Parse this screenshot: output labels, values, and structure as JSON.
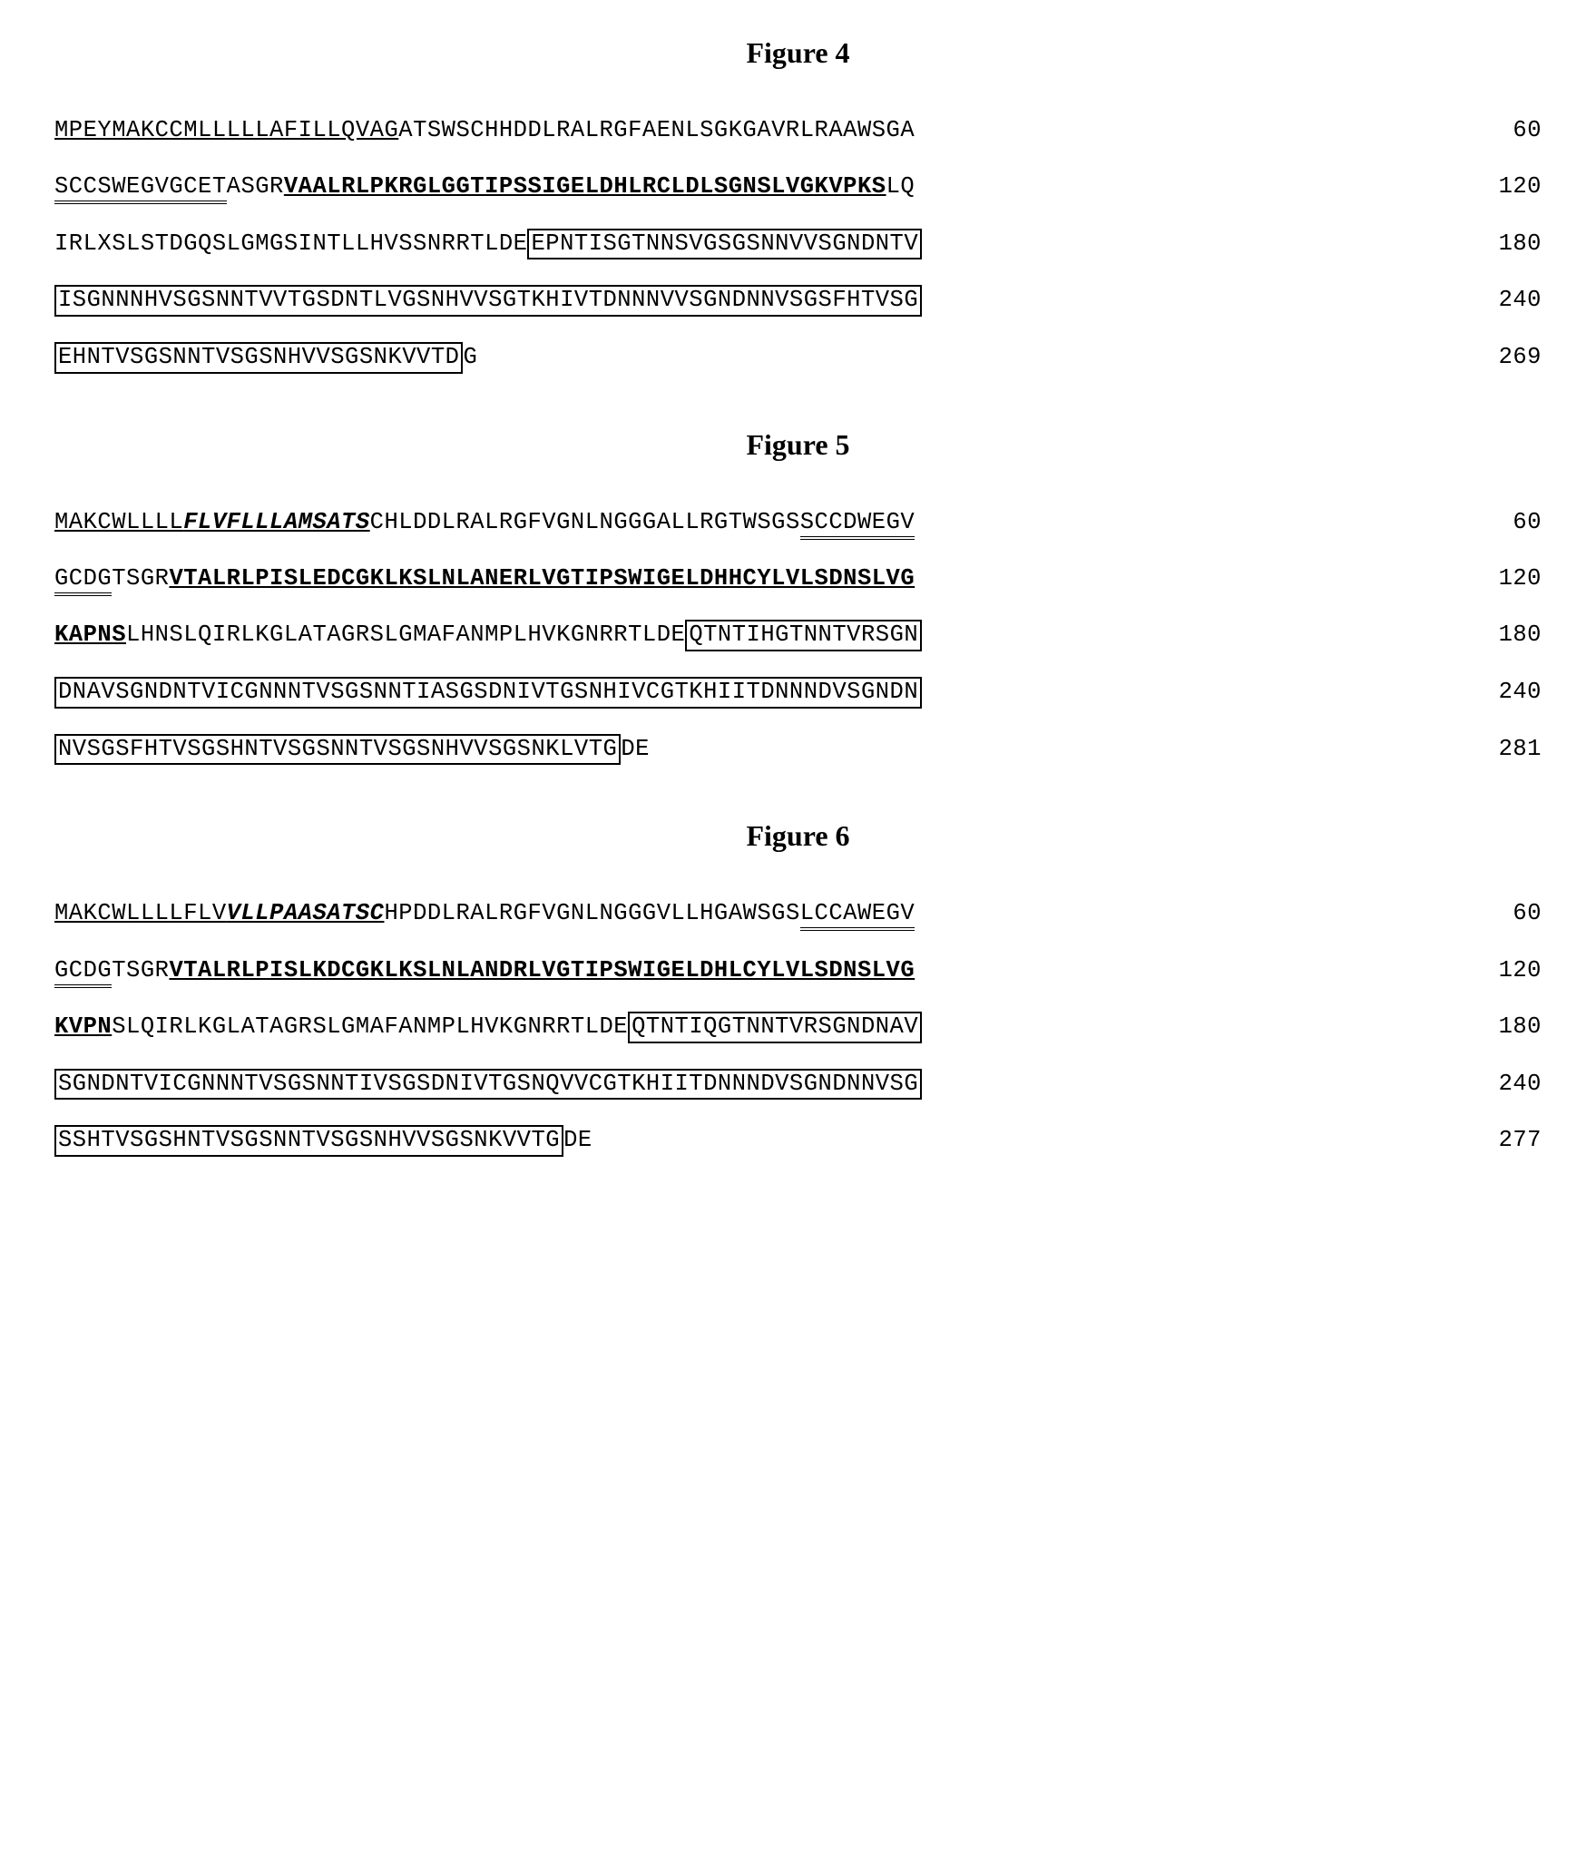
{
  "figures": [
    {
      "title": "Figure 4",
      "lines": [
        {
          "num": "60",
          "segments": [
            {
              "text": "MPEYMAKCCMLLLLLAFILLQVAG",
              "classes": "u"
            },
            {
              "text": "ATSWSCHHDDLRALRGFAENLSGKGAVRLRAAWSGA",
              "classes": ""
            }
          ]
        },
        {
          "num": "120",
          "segments": [
            {
              "text": "SCCSWEGVGCET",
              "classes": "du"
            },
            {
              "text": "ASGR",
              "classes": ""
            },
            {
              "text": "VAALRLPKRGLGGTIPSSIGELDHLRCLDLSGNSLVGKVPKS",
              "classes": "b u"
            },
            {
              "text": "LQ",
              "classes": ""
            }
          ]
        },
        {
          "num": "180",
          "segments": [
            {
              "text": "IRLXSLSTDGQSLGMGSINTLLHVSSNRRTLDE",
              "classes": ""
            },
            {
              "text": "EPNTISGTNNSVGSGSNNVVSGNDNTV",
              "classes": "box"
            }
          ]
        },
        {
          "num": "240",
          "segments": [
            {
              "text": "ISGNNNHVSGSNNTVVTGSDNTLVGSNHVVSGTKHIVTDNNNVVSGNDNNVSGSFHTVSG",
              "classes": "box"
            }
          ]
        },
        {
          "num": "269",
          "segments": [
            {
              "text": "EHNTVSGSNNTVSGSNHVVSGSNKVVTD",
              "classes": "box"
            },
            {
              "text": "G",
              "classes": ""
            }
          ]
        }
      ]
    },
    {
      "title": "Figure 5",
      "lines": [
        {
          "num": "60",
          "segments": [
            {
              "text": "MAKCWLLLL",
              "classes": "u"
            },
            {
              "text": "FLVFLLLAMSATS",
              "classes": "b i u"
            },
            {
              "text": "CHLDDLRALRGFVGNLNGGGALLRGTWSGS",
              "classes": ""
            },
            {
              "text": "SCCDWEGV",
              "classes": "du"
            }
          ]
        },
        {
          "num": "120",
          "segments": [
            {
              "text": "GCDG",
              "classes": "du"
            },
            {
              "text": "TSGR",
              "classes": ""
            },
            {
              "text": "VTALRLPISLEDCGKLKSLNLANERLVGTIPSWIGELDHHCYLVLSDNSLVG",
              "classes": "b u"
            }
          ]
        },
        {
          "num": "180",
          "segments": [
            {
              "text": "KAPNS",
              "classes": "b u"
            },
            {
              "text": "LHNSLQIRLKGLATAGRSLGMAFANMPLHVKGNRRTLDE",
              "classes": ""
            },
            {
              "text": "QTNTIHGTNNTVRSGN",
              "classes": "box"
            }
          ]
        },
        {
          "num": "240",
          "segments": [
            {
              "text": "DNAVSGNDNTVICGNNNTVSGSNNTIASGSDNIVTGSNHIVCGTKHIITDNNNDVSGNDN",
              "classes": "box"
            }
          ]
        },
        {
          "num": "281",
          "segments": [
            {
              "text": "NVSGSFHTVSGSHNTVSGSNNTVSGSNHVVSGSNKLVTG",
              "classes": "box"
            },
            {
              "text": "DE",
              "classes": ""
            }
          ]
        }
      ]
    },
    {
      "title": "Figure 6",
      "lines": [
        {
          "num": "60",
          "segments": [
            {
              "text": "MAKCWLLLLFLV",
              "classes": "u"
            },
            {
              "text": "VLLPAASATSC",
              "classes": "b i u"
            },
            {
              "text": "HPDDLRALRGFVGNLNGGGVLLHGAWSGS",
              "classes": ""
            },
            {
              "text": "LCCAWEGV",
              "classes": "du"
            }
          ]
        },
        {
          "num": "120",
          "segments": [
            {
              "text": "GCDG",
              "classes": "du"
            },
            {
              "text": "TSGR",
              "classes": ""
            },
            {
              "text": "VTALRLPISLKDCGKLKSLNLANDRLVGTIPSWIGELDHLCYLVLSDNSLVG",
              "classes": "b u"
            }
          ]
        },
        {
          "num": "180",
          "segments": [
            {
              "text": "KVPN",
              "classes": "b u"
            },
            {
              "text": "SLQIRLKGLATAGRSLGMAFANMPLHVKGNRRTLDE",
              "classes": ""
            },
            {
              "text": "QTNTIQGTNNTVRSGNDNAV",
              "classes": "box"
            }
          ]
        },
        {
          "num": "240",
          "segments": [
            {
              "text": "SGNDNTVICGNNNTVSGSNNTIVSGSDNIVTGSNQVVCGTKHIITDNNNDVSGNDNNVSG",
              "classes": "box"
            }
          ]
        },
        {
          "num": "277",
          "segments": [
            {
              "text": "SSHTVSGSHNTVSGSNNTVSGSNHVVSGSNKVVTG",
              "classes": "box"
            },
            {
              "text": "DE",
              "classes": ""
            }
          ]
        }
      ]
    }
  ]
}
